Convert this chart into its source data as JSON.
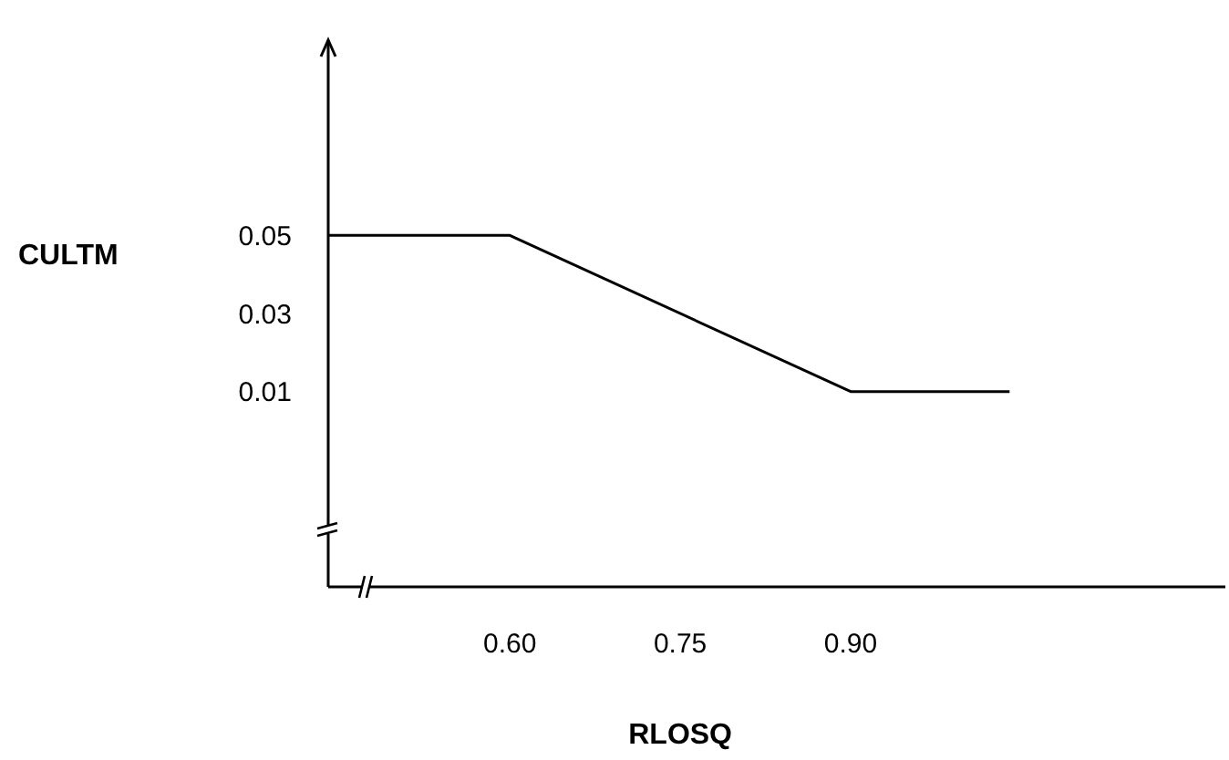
{
  "chart_data": {
    "type": "line",
    "xlabel": "RLOSQ",
    "ylabel": "CULTM",
    "x": [
      0.44,
      0.6,
      0.9,
      1.04
    ],
    "series": [
      {
        "color": "#000000",
        "values": [
          0.05,
          0.05,
          0.01,
          0.01
        ]
      }
    ],
    "xlim": [
      0.44,
      1.23
    ],
    "xticks": [
      {
        "value": 0.6,
        "label": "0.60"
      },
      0.75,
      {
        "value": 0.9,
        "label": "0.90"
      }
    ],
    "ylim": [
      -0.04,
      0.1
    ],
    "yticks": [
      0.01,
      0.03,
      0.05
    ],
    "grid": false,
    "marker": "none",
    "line_style": "solid"
  }
}
